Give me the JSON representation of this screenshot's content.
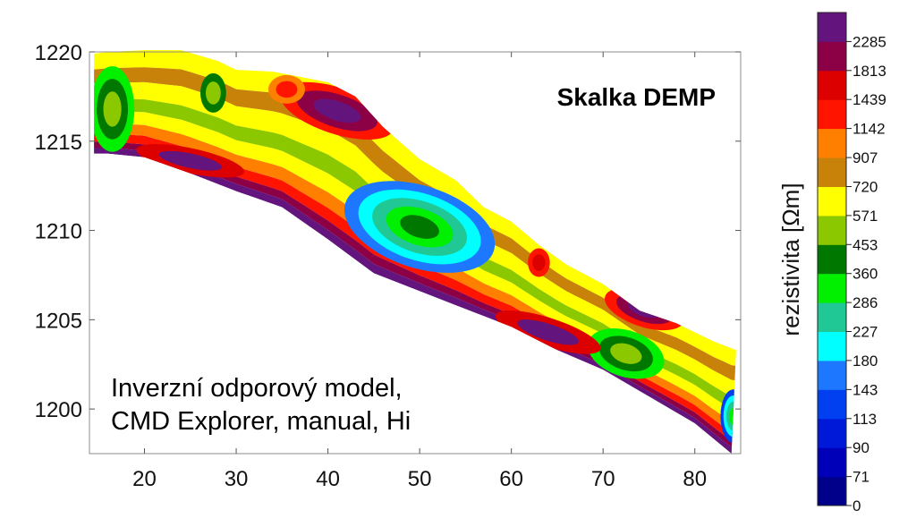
{
  "chart_data": {
    "type": "heatmap",
    "title": "Skalka DEMP",
    "annotation_lines": [
      "Inverzní odporový model,",
      "CMD Explorer, manual, Hi"
    ],
    "xlabel": "",
    "ylabel": "",
    "xlim": [
      14,
      85
    ],
    "ylim": [
      1197.5,
      1220
    ],
    "x_ticks": [
      20,
      30,
      40,
      50,
      60,
      70,
      80
    ],
    "y_ticks": [
      1200,
      1205,
      1210,
      1215,
      1220
    ],
    "colorbar": {
      "label": "rezistivita [Ωm]",
      "levels": [
        0,
        71,
        90,
        113,
        143,
        180,
        227,
        286,
        360,
        453,
        571,
        720,
        907,
        1142,
        1439,
        1813,
        2285
      ],
      "colors": [
        "#00008b",
        "#0000b8",
        "#0018d8",
        "#0040f0",
        "#1e78ff",
        "#00ffff",
        "#20c896",
        "#00f000",
        "#007800",
        "#8cc800",
        "#ffff00",
        "#c8820a",
        "#ff8000",
        "#ff1400",
        "#dc0000",
        "#8c0046",
        "#64147d"
      ]
    },
    "profile": {
      "top_surface": [
        [
          14.5,
          1219.9
        ],
        [
          16,
          1220
        ],
        [
          20,
          1220.1
        ],
        [
          24,
          1220.1
        ],
        [
          28,
          1219.5
        ],
        [
          30,
          1219
        ],
        [
          34,
          1218.9
        ],
        [
          37,
          1218.6
        ],
        [
          40,
          1218.3
        ],
        [
          43,
          1217.5
        ],
        [
          46,
          1215.8
        ],
        [
          50,
          1214
        ],
        [
          54,
          1212.8
        ],
        [
          57,
          1211.3
        ],
        [
          60,
          1210.5
        ],
        [
          63,
          1209.2
        ],
        [
          66,
          1208.1
        ],
        [
          70,
          1207
        ],
        [
          74,
          1205.5
        ],
        [
          78,
          1204.8
        ],
        [
          82,
          1203.8
        ],
        [
          84.5,
          1203.3
        ]
      ],
      "bottom_surface": [
        [
          14.5,
          1214.3
        ],
        [
          16,
          1214.3
        ],
        [
          20,
          1214.1
        ],
        [
          25,
          1213.2
        ],
        [
          30,
          1212.2
        ],
        [
          35,
          1211.3
        ],
        [
          40,
          1209.5
        ],
        [
          45,
          1207.6
        ],
        [
          50,
          1206.6
        ],
        [
          55,
          1205.6
        ],
        [
          60,
          1204.6
        ],
        [
          65,
          1203.3
        ],
        [
          70,
          1202.2
        ],
        [
          75,
          1200.7
        ],
        [
          80,
          1199.2
        ],
        [
          84,
          1197.5
        ]
      ]
    },
    "anomalies": [
      {
        "x": 50,
        "y": 1210.2,
        "rx": 8.5,
        "ry": 2.3,
        "angle": 18,
        "levels": [
          4,
          5,
          6,
          7,
          8
        ],
        "center_value": 90
      },
      {
        "x": 72.5,
        "y": 1203.1,
        "rx": 4.3,
        "ry": 1.3,
        "angle": 18,
        "levels": [
          7,
          8,
          9
        ],
        "center_value": 286
      },
      {
        "x": 16.5,
        "y": 1216.8,
        "rx": 2.4,
        "ry": 2.4,
        "angle": 0,
        "levels": [
          7,
          8,
          9
        ],
        "center_value": 180
      },
      {
        "x": 84.2,
        "y": 1199.6,
        "rx": 1.4,
        "ry": 1.5,
        "angle": 0,
        "levels": [
          3,
          5,
          6,
          7
        ],
        "center_value": 113
      },
      {
        "x": 41,
        "y": 1216.7,
        "rx": 6.5,
        "ry": 1.3,
        "angle": 18,
        "levels": [
          13,
          15,
          16
        ],
        "center_value": 2285
      },
      {
        "x": 74.5,
        "y": 1205.6,
        "rx": 4.5,
        "ry": 1,
        "angle": 18,
        "levels": [
          13,
          15,
          16
        ],
        "center_value": 2285
      },
      {
        "x": 25,
        "y": 1213.9,
        "rx": 6,
        "ry": 0.7,
        "angle": 12,
        "levels": [
          14,
          16
        ],
        "center_value": 2285
      },
      {
        "x": 64,
        "y": 1204.3,
        "rx": 6,
        "ry": 0.8,
        "angle": 18,
        "levels": [
          14,
          16
        ],
        "center_value": 2285
      },
      {
        "x": 27.5,
        "y": 1217.7,
        "rx": 1.4,
        "ry": 1.1,
        "angle": 0,
        "levels": [
          8,
          9
        ],
        "center_value": 360
      },
      {
        "x": 35.5,
        "y": 1217.9,
        "rx": 2,
        "ry": 0.8,
        "angle": 0,
        "levels": [
          12,
          13
        ],
        "center_value": 1142
      },
      {
        "x": 63,
        "y": 1208.2,
        "rx": 1.2,
        "ry": 0.8,
        "angle": 0,
        "levels": [
          13,
          14
        ],
        "center_value": 1439
      }
    ]
  }
}
